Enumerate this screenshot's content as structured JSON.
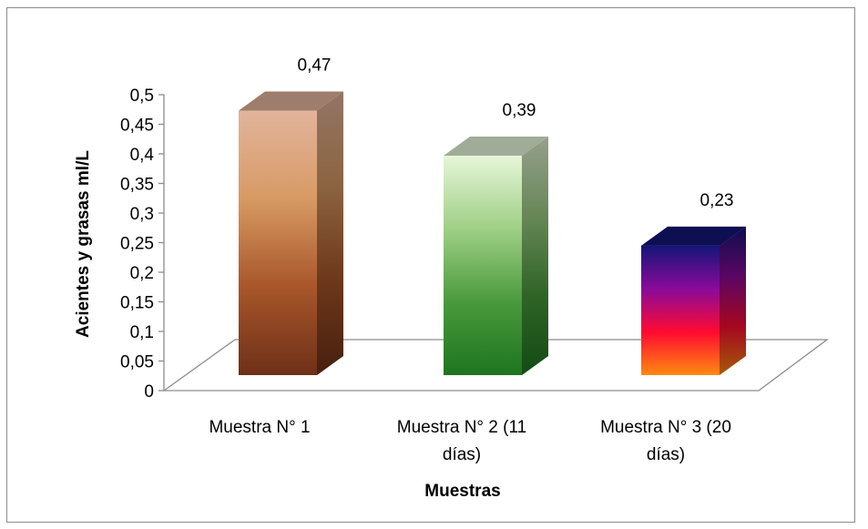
{
  "chart_data": {
    "type": "bar",
    "categories": [
      "Muestra N° 1",
      "Muestra N° 2 (11 días)",
      "Muestra N° 3 (20 días)"
    ],
    "category_lines": [
      [
        "Muestra N° 1"
      ],
      [
        "Muestra N° 2 (11",
        "días)"
      ],
      [
        "Muestra N° 3 (20",
        "días)"
      ]
    ],
    "values": [
      0.47,
      0.39,
      0.23
    ],
    "data_labels": [
      "0,47",
      "0,39",
      "0,23"
    ],
    "xlabel": "Muestras",
    "ylabel": "Acientes y grasas ml/L",
    "ylim": [
      0,
      0.5
    ],
    "yticks": [
      "0",
      "0,05",
      "0,1",
      "0,15",
      "0,2",
      "0,25",
      "0,3",
      "0,35",
      "0,4",
      "0,45",
      "0,5"
    ],
    "grid": false,
    "legend": "none",
    "style": "3d-column",
    "bar_gradients": [
      [
        "#e2b49c",
        "#d79a64",
        "#a8562a",
        "#6e3018"
      ],
      [
        "#e6f6d8",
        "#9fcf86",
        "#4a9a3c",
        "#1e7420"
      ],
      [
        "#151578",
        "#8a0a9a",
        "#ff0a32",
        "#ff8a10"
      ]
    ]
  }
}
